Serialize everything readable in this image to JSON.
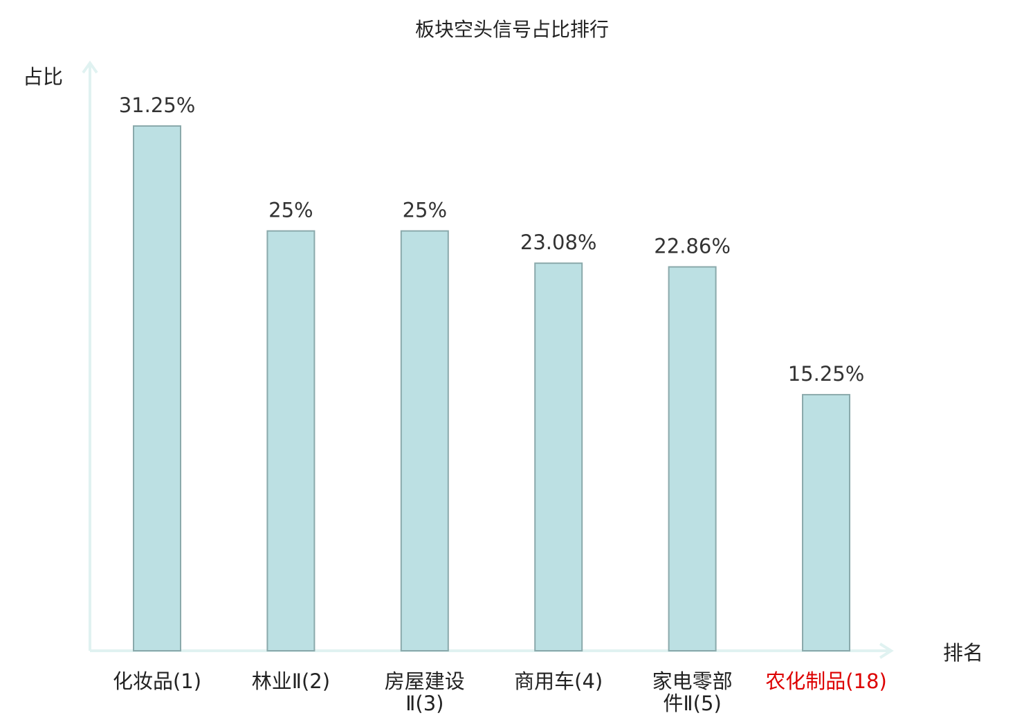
{
  "chart_data": {
    "type": "bar",
    "title": "板块空头信号占比排行",
    "ylabel": "占比",
    "xlabel": "排名",
    "categories": [
      {
        "lines": [
          "化妆品(1)"
        ],
        "highlight": false
      },
      {
        "lines": [
          "林业Ⅱ(2)"
        ],
        "highlight": false
      },
      {
        "lines": [
          "房屋建设",
          "Ⅱ(3)"
        ],
        "highlight": false
      },
      {
        "lines": [
          "商用车(4)"
        ],
        "highlight": false
      },
      {
        "lines": [
          "家电零部",
          "件Ⅱ(5)"
        ],
        "highlight": false
      },
      {
        "lines": [
          "农化制品(18)"
        ],
        "highlight": true
      }
    ],
    "values": [
      31.25,
      25,
      25,
      23.08,
      22.86,
      15.25
    ],
    "data_labels": [
      "31.25%",
      "25%",
      "25%",
      "23.08%",
      "22.86%",
      "15.25%"
    ],
    "ylim": [
      0,
      31.25
    ],
    "grid": false,
    "colors": {
      "bar_fill": "#bce0e3",
      "bar_stroke": "#8aa9ab",
      "axis": "#e0f2f1",
      "text": "#333333",
      "highlight_text": "#dd0000"
    }
  }
}
